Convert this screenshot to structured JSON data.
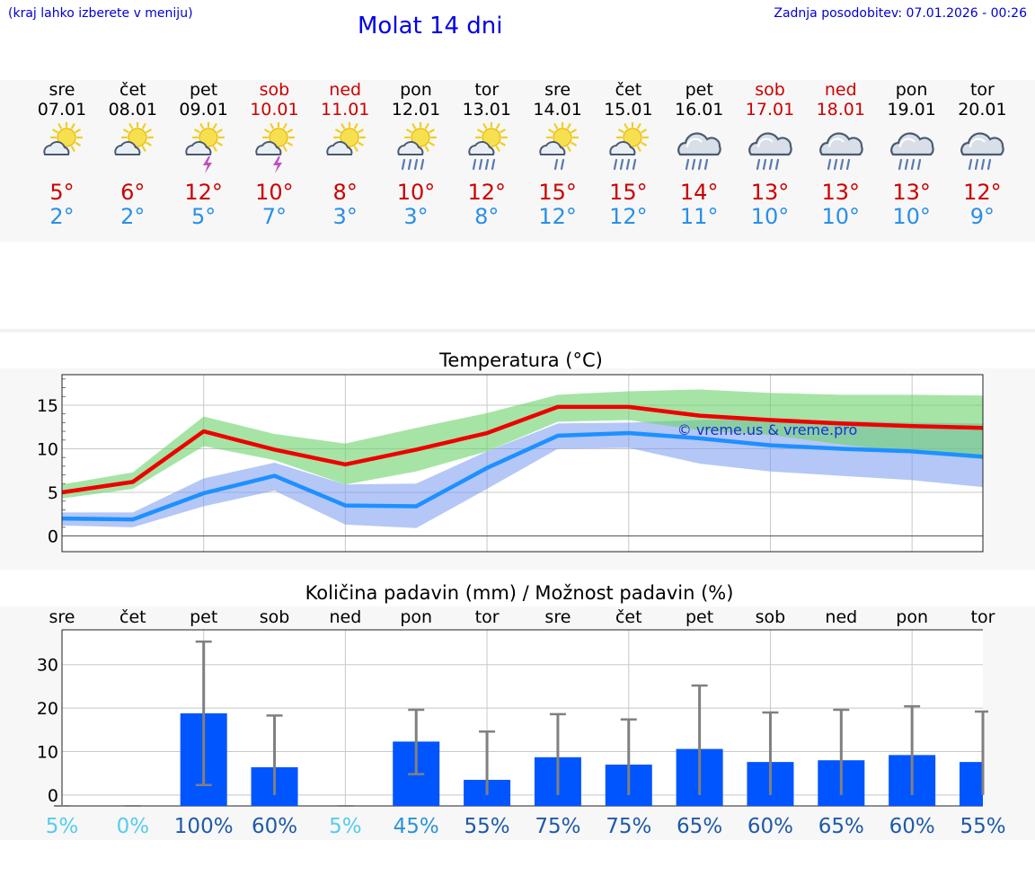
{
  "header": {
    "hint": "(kraj lahko izberete v meniju)",
    "title": "Molat 14 dni",
    "updated": "Zadnja posodobitev: 07.01.2026 - 00:26"
  },
  "colors": {
    "max": "#ee0000",
    "min": "#1e90ff",
    "max_band": "#6ad26a",
    "min_band": "#7799ee",
    "bar": "#0055ff",
    "weekend": "#cc0000"
  },
  "days": [
    {
      "name": "sre",
      "date": "07.01",
      "tmax": "5°",
      "tmin": "2°",
      "weekend": false,
      "icon": "sun-cloud-icon"
    },
    {
      "name": "čet",
      "date": "08.01",
      "tmax": "6°",
      "tmin": "2°",
      "weekend": false,
      "icon": "sun-cloud-icon"
    },
    {
      "name": "pet",
      "date": "09.01",
      "tmax": "12°",
      "tmin": "5°",
      "weekend": false,
      "icon": "sun-cloud-thunder-icon"
    },
    {
      "name": "sob",
      "date": "10.01",
      "tmax": "10°",
      "tmin": "7°",
      "weekend": true,
      "icon": "sun-cloud-thunder-icon"
    },
    {
      "name": "ned",
      "date": "11.01",
      "tmax": "8°",
      "tmin": "3°",
      "weekend": true,
      "icon": "sun-cloud-icon"
    },
    {
      "name": "pon",
      "date": "12.01",
      "tmax": "10°",
      "tmin": "3°",
      "weekend": false,
      "icon": "sun-cloud-rain-icon"
    },
    {
      "name": "tor",
      "date": "13.01",
      "tmax": "12°",
      "tmin": "8°",
      "weekend": false,
      "icon": "sun-cloud-rain-icon"
    },
    {
      "name": "sre",
      "date": "14.01",
      "tmax": "15°",
      "tmin": "12°",
      "weekend": false,
      "icon": "sun-cloud-light-rain-icon"
    },
    {
      "name": "čet",
      "date": "15.01",
      "tmax": "15°",
      "tmin": "12°",
      "weekend": false,
      "icon": "sun-cloud-rain-icon"
    },
    {
      "name": "pet",
      "date": "16.01",
      "tmax": "14°",
      "tmin": "11°",
      "weekend": false,
      "icon": "cloud-rain-icon"
    },
    {
      "name": "sob",
      "date": "17.01",
      "tmax": "13°",
      "tmin": "10°",
      "weekend": true,
      "icon": "cloud-rain-icon"
    },
    {
      "name": "ned",
      "date": "18.01",
      "tmax": "13°",
      "tmin": "10°",
      "weekend": true,
      "icon": "cloud-rain-icon"
    },
    {
      "name": "pon",
      "date": "19.01",
      "tmax": "13°",
      "tmin": "10°",
      "weekend": false,
      "icon": "cloud-rain-icon"
    },
    {
      "name": "tor",
      "date": "20.01",
      "tmax": "12°",
      "tmin": "9°",
      "weekend": false,
      "icon": "cloud-rain-icon"
    }
  ],
  "chart_data": [
    {
      "type": "line",
      "title": "Temperatura (°C)",
      "watermark": "© vreme.us & vreme.pro",
      "ylim": [
        -1.8,
        18.5
      ],
      "yticks": [
        0,
        5,
        10,
        15
      ],
      "grid": true,
      "x": [
        "07.01",
        "08.01",
        "09.01",
        "10.01",
        "11.01",
        "12.01",
        "13.01",
        "14.01",
        "15.01",
        "16.01",
        "17.01",
        "18.01",
        "19.01",
        "20.01"
      ],
      "series": [
        {
          "name": "max",
          "values": [
            5.0,
            6.2,
            12.0,
            9.9,
            8.2,
            9.9,
            11.8,
            14.8,
            14.8,
            13.8,
            13.3,
            12.9,
            12.6,
            12.4
          ],
          "band_low": [
            4.3,
            5.4,
            10.3,
            8.7,
            5.9,
            7.4,
            9.7,
            13.1,
            13.3,
            12.1,
            11.6,
            10.5,
            9.5,
            8.8
          ],
          "band_high": [
            5.9,
            7.3,
            13.7,
            11.7,
            10.6,
            12.4,
            14.1,
            16.2,
            16.6,
            16.8,
            16.4,
            16.2,
            16.2,
            16.1
          ]
        },
        {
          "name": "min",
          "values": [
            2.0,
            1.9,
            4.9,
            6.9,
            3.5,
            3.4,
            7.8,
            11.5,
            11.8,
            11.2,
            10.4,
            10.0,
            9.7,
            9.1
          ],
          "band_low": [
            1.2,
            1.0,
            3.4,
            5.2,
            1.3,
            0.9,
            5.4,
            10.0,
            10.1,
            8.3,
            7.4,
            6.9,
            6.4,
            5.6
          ],
          "band_high": [
            2.7,
            2.7,
            6.6,
            8.4,
            5.9,
            6.0,
            9.7,
            12.9,
            13.0,
            13.3,
            13.4,
            13.2,
            13.0,
            12.9
          ]
        }
      ]
    },
    {
      "type": "bar",
      "title": "Količina padavin (mm) / Možnost padavin (%)",
      "ylim": [
        -2.5,
        38
      ],
      "yticks": [
        0,
        10,
        20,
        30
      ],
      "grid": true,
      "categories": [
        "sre",
        "čet",
        "pet",
        "sob",
        "ned",
        "pon",
        "tor",
        "sre",
        "čet",
        "pet",
        "sob",
        "ned",
        "pon",
        "tor"
      ],
      "values": [
        0,
        0,
        18.8,
        6.4,
        0,
        12.3,
        3.5,
        8.7,
        7.0,
        10.6,
        7.6,
        8.0,
        9.2,
        7.6
      ],
      "error_low": [
        0,
        0,
        2.3,
        0,
        0,
        4.8,
        0,
        0,
        0,
        0,
        0,
        0,
        0,
        0
      ],
      "error_high": [
        0,
        0,
        35.3,
        18.3,
        0,
        19.6,
        14.6,
        18.6,
        17.4,
        25.2,
        19.0,
        19.6,
        20.4,
        19.2
      ],
      "probability": [
        "5%",
        "0%",
        "100%",
        "60%",
        "5%",
        "45%",
        "55%",
        "75%",
        "75%",
        "65%",
        "60%",
        "65%",
        "60%",
        "55%"
      ],
      "probability_colors": [
        "#55ccee",
        "#55ccee",
        "#1e5aa8",
        "#1e5aa8",
        "#55ccee",
        "#2a93d6",
        "#1e5aa8",
        "#1e5aa8",
        "#1e5aa8",
        "#1e5aa8",
        "#1e5aa8",
        "#1e5aa8",
        "#1e5aa8",
        "#1e5aa8"
      ]
    }
  ]
}
